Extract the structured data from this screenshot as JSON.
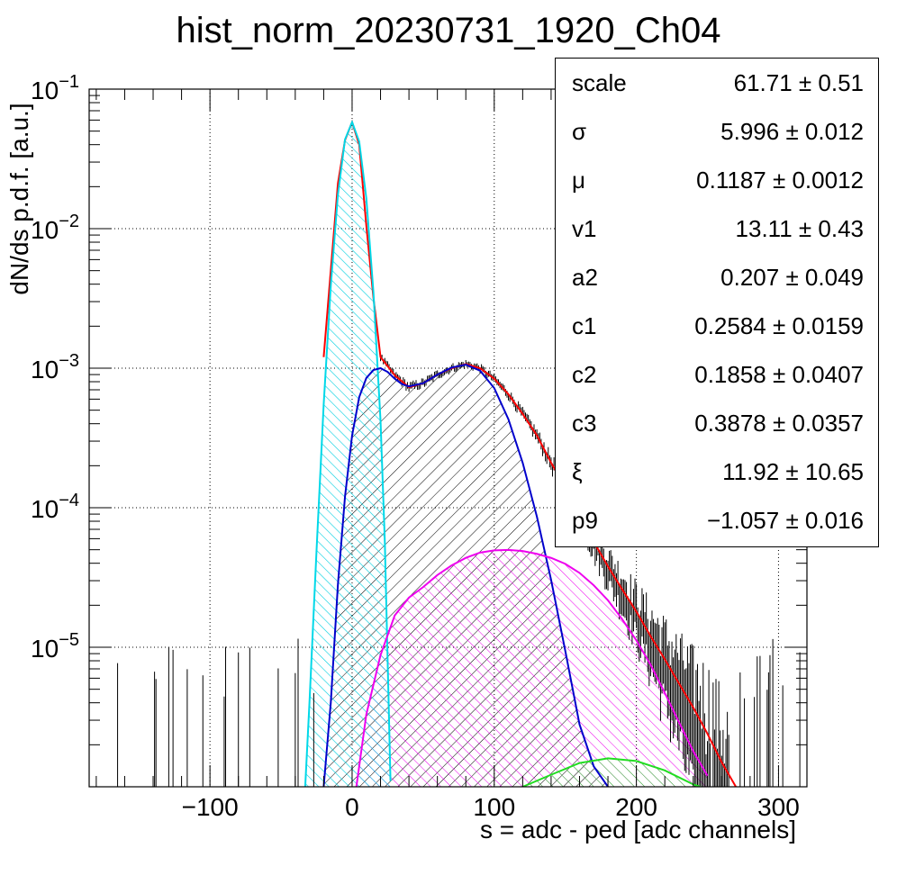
{
  "title": "hist_norm_20230731_1920_Ch04",
  "stats": [
    {
      "name": "scale",
      "value": "61.71 ± 0.51"
    },
    {
      "name": "σ",
      "value": "5.996 ± 0.012"
    },
    {
      "name": "μ",
      "value": "0.1187 ± 0.0012"
    },
    {
      "name": "v1",
      "value": "13.11 ± 0.43"
    },
    {
      "name": "a2",
      "value": "0.207 ± 0.049"
    },
    {
      "name": "c1",
      "value": "0.2584 ± 0.0159"
    },
    {
      "name": "c2",
      "value": "0.1858 ± 0.0407"
    },
    {
      "name": "c3",
      "value": "0.3878 ± 0.0357"
    },
    {
      "name": "ξ",
      "value": "11.92 ± 10.65"
    },
    {
      "name": "p9",
      "value": "−1.057 ± 0.016"
    }
  ],
  "chart_data": {
    "type": "line",
    "title": "hist_norm_20230731_1920_Ch04",
    "xlabel": "s = adc - ped [adc channels]",
    "ylabel": "dN/ds p.d.f. [a.u.]",
    "xlim": [
      -185,
      320
    ],
    "ylim": [
      1e-06,
      0.1
    ],
    "yscale": "log",
    "grid": true,
    "x_ticks": [
      -100,
      0,
      100,
      200,
      300
    ],
    "y_ticks": [
      {
        "base": "10",
        "exp": "−5",
        "value": 1e-05
      },
      {
        "base": "10",
        "exp": "−4",
        "value": 0.0001
      },
      {
        "base": "10",
        "exp": "−3",
        "value": 0.001
      },
      {
        "base": "10",
        "exp": "−2",
        "value": 0.01
      },
      {
        "base": "10",
        "exp": "−1",
        "value": 0.1
      }
    ],
    "series": [
      {
        "color": "#ff0000",
        "fill": false,
        "x": [
          -20,
          -10,
          -5,
          0,
          5,
          10,
          15,
          20,
          30,
          40,
          50,
          60,
          70,
          80,
          90,
          100,
          110,
          120,
          130,
          140,
          150,
          160,
          170,
          180,
          190,
          200,
          210,
          220,
          230,
          240,
          250,
          260,
          270
        ],
        "y": [
          0.0012,
          0.021,
          0.043,
          0.058,
          0.04,
          0.0105,
          0.0032,
          0.0012,
          0.00089,
          0.00073,
          0.00078,
          0.0009,
          0.001,
          0.00107,
          0.001,
          0.00084,
          0.00065,
          0.00047,
          0.00033,
          0.00021,
          0.00014,
          8.9e-05,
          5.7e-05,
          3.8e-05,
          2.6e-05,
          1.8e-05,
          1.2e-05,
          8.2e-06,
          5.5e-06,
          3.7e-06,
          2.4e-06,
          1.5e-06,
          1e-06
        ]
      },
      {
        "color": "#00d8e8",
        "fill": true,
        "x": [
          -33,
          -30,
          -25,
          -20,
          -15,
          -10,
          -5,
          0,
          5,
          10,
          15,
          20,
          23,
          27
        ],
        "y": [
          1e-06,
          4e-06,
          5e-05,
          0.00055,
          0.0039,
          0.0175,
          0.0435,
          0.058,
          0.042,
          0.0165,
          0.0035,
          0.00042,
          5.8e-05,
          1.1e-06
        ]
      },
      {
        "color": "#0000cc",
        "fill": true,
        "x": [
          -20,
          -15,
          -10,
          -5,
          0,
          5,
          10,
          15,
          20,
          25,
          30,
          35,
          40,
          50,
          60,
          70,
          80,
          90,
          100,
          110,
          120,
          130,
          140,
          150,
          160,
          170,
          180
        ],
        "y": [
          1e-06,
          4e-06,
          2.8e-05,
          0.00012,
          0.00033,
          0.00062,
          0.00085,
          0.00097,
          0.001,
          0.00094,
          0.00084,
          0.00077,
          0.00074,
          0.00078,
          0.0009,
          0.00101,
          0.00106,
          0.00096,
          0.00072,
          0.00043,
          0.00021,
          8.63e-05,
          3.04e-05,
          9.4e-06,
          2.8e-06,
          1.4e-06,
          1e-06
        ]
      },
      {
        "color": "#ee00ee",
        "fill": true,
        "x": [
          3,
          10,
          20,
          30,
          40,
          50,
          60,
          70,
          80,
          90,
          100,
          110,
          120,
          130,
          140,
          150,
          160,
          170,
          180,
          190,
          200,
          210,
          220,
          230,
          240,
          250
        ],
        "y": [
          1e-06,
          3.3e-06,
          8.8e-06,
          1.69e-05,
          2.27e-05,
          2.7e-05,
          3.29e-05,
          3.86e-05,
          4.37e-05,
          4.77e-05,
          4.95e-05,
          4.98e-05,
          4.89e-05,
          4.67e-05,
          4.37e-05,
          3.96e-05,
          3.41e-05,
          2.78e-05,
          2.17e-05,
          1.59e-05,
          1.12e-05,
          7.5e-06,
          4.7e-06,
          2.9e-06,
          1.8e-06,
          1.2e-06
        ]
      },
      {
        "color": "#22dd22",
        "fill": true,
        "x": [
          120,
          140,
          160,
          180,
          200,
          220,
          240,
          245
        ],
        "y": [
          1e-06,
          1.22e-06,
          1.48e-06,
          1.6e-06,
          1.53e-06,
          1.31e-06,
          1.04e-06,
          1e-06
        ]
      }
    ],
    "histogram": {
      "color": "#000000",
      "x_range": [
        -185,
        320
      ],
      "note": "data points with error bars"
    }
  }
}
